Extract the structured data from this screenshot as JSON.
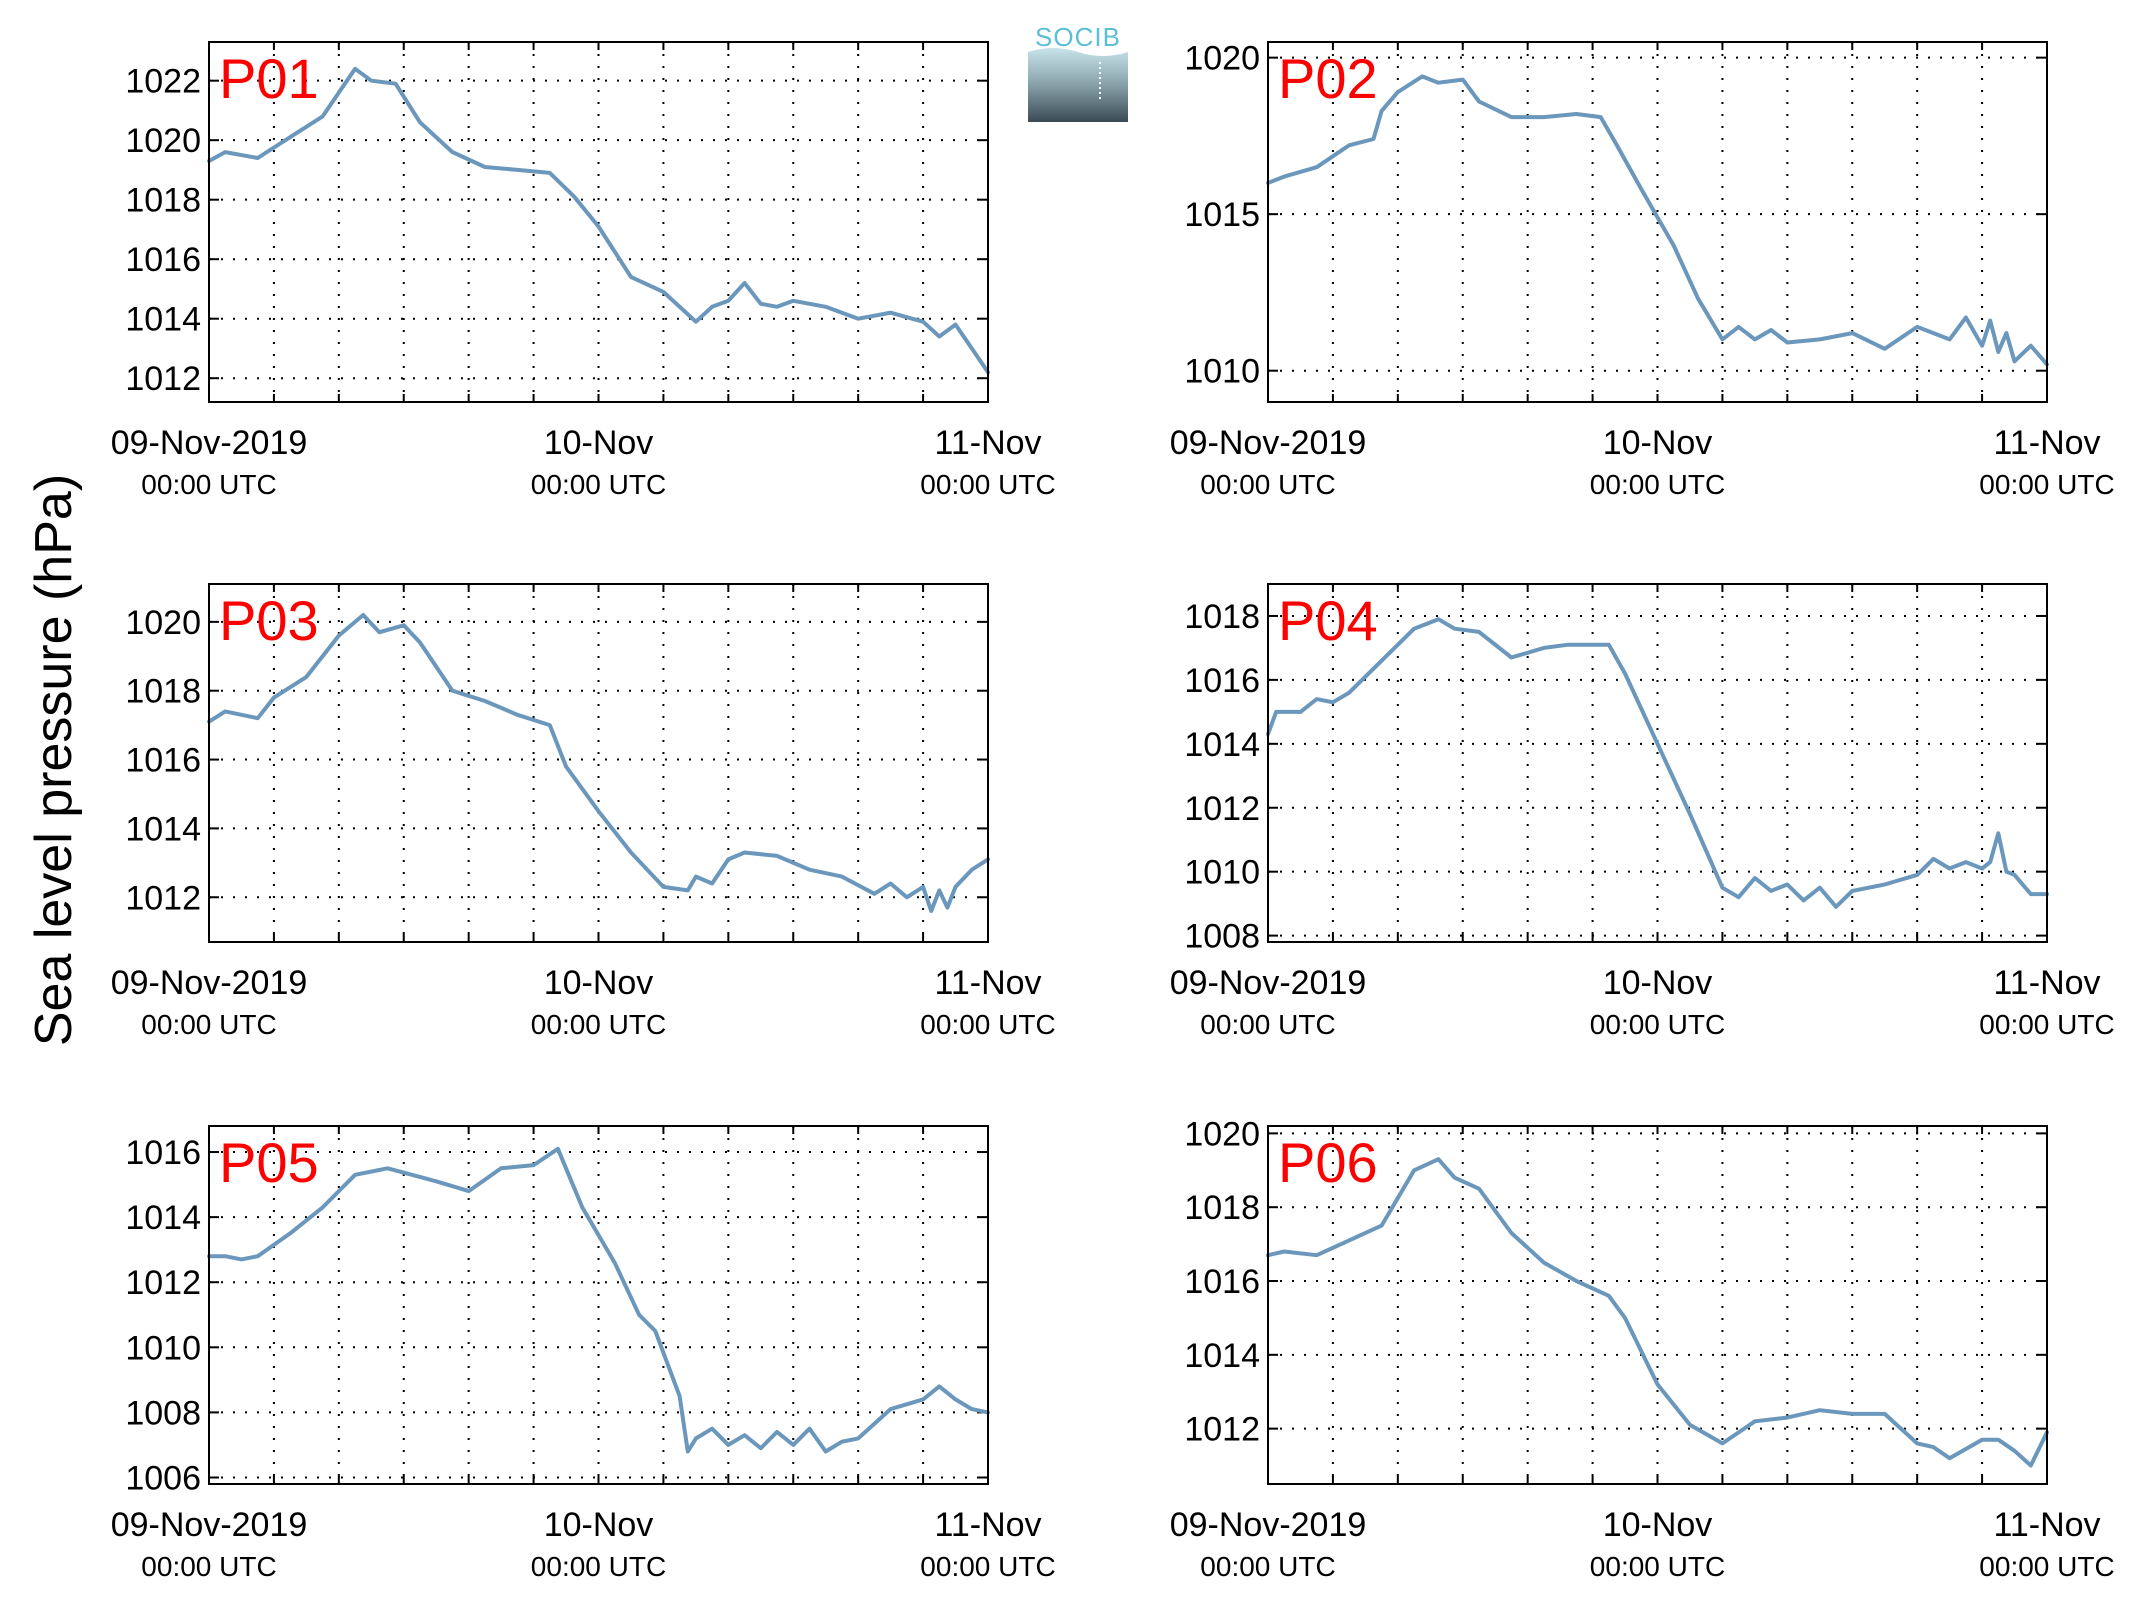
{
  "ylabel": "Sea level pressure (hPa)",
  "logo": {
    "text": "SOCIB"
  },
  "colors": {
    "line": "#6a97bb",
    "panel_label": "#ff0000",
    "grid": "#000000"
  },
  "chart_data": [
    {
      "type": "line",
      "label": "P01",
      "ylim": [
        1011.2,
        1023.3
      ],
      "yticks": [
        1012,
        1014,
        1016,
        1018,
        1020,
        1022
      ],
      "grid": true,
      "xlim": [
        0,
        48
      ],
      "xticks": [
        {
          "x": 0,
          "date": "09-Nov-2019",
          "time": "00:00 UTC"
        },
        {
          "x": 24,
          "date": "10-Nov",
          "time": "00:00 UTC"
        },
        {
          "x": 48,
          "date": "11-Nov",
          "time": "00:00 UTC"
        }
      ],
      "series": [
        {
          "x": [
            0,
            1,
            3,
            5,
            7,
            9,
            10,
            11.5,
            13,
            15,
            17,
            19,
            21,
            22.5,
            24,
            26,
            28,
            30,
            31,
            32,
            33,
            34,
            35,
            36,
            38,
            40,
            42,
            44,
            45,
            46,
            47,
            48
          ],
          "y": [
            1019.3,
            1019.6,
            1019.4,
            1020.1,
            1020.8,
            1022.4,
            1022.0,
            1021.9,
            1020.6,
            1019.6,
            1019.1,
            1019.0,
            1018.9,
            1018.1,
            1017.1,
            1015.4,
            1014.9,
            1013.9,
            1014.4,
            1014.6,
            1015.2,
            1014.5,
            1014.4,
            1014.6,
            1014.4,
            1014.0,
            1014.2,
            1013.9,
            1013.4,
            1013.8,
            1013.0,
            1012.2
          ]
        }
      ]
    },
    {
      "type": "line",
      "label": "P02",
      "ylim": [
        1009.0,
        1020.5
      ],
      "yticks": [
        1010,
        1015,
        1020
      ],
      "grid": true,
      "xlim": [
        0,
        48
      ],
      "xticks": [
        {
          "x": 0,
          "date": "09-Nov-2019",
          "time": "00:00 UTC"
        },
        {
          "x": 24,
          "date": "10-Nov",
          "time": "00:00 UTC"
        },
        {
          "x": 48,
          "date": "11-Nov",
          "time": "00:00 UTC"
        }
      ],
      "series": [
        {
          "x": [
            0,
            1,
            3,
            5,
            6.5,
            7,
            8,
            9.5,
            10.5,
            12,
            13,
            15,
            17,
            19,
            20.5,
            21.5,
            23,
            25,
            26.5,
            28,
            29,
            30,
            31,
            32,
            34,
            36,
            38,
            40,
            42,
            43,
            44,
            44.5,
            45,
            45.5,
            46,
            47,
            48
          ],
          "y": [
            1016.0,
            1016.2,
            1016.5,
            1017.2,
            1017.4,
            1018.3,
            1018.9,
            1019.4,
            1019.2,
            1019.3,
            1018.6,
            1018.1,
            1018.1,
            1018.2,
            1018.1,
            1017.2,
            1015.8,
            1014.0,
            1012.3,
            1011.0,
            1011.4,
            1011.0,
            1011.3,
            1010.9,
            1011.0,
            1011.2,
            1010.7,
            1011.4,
            1011.0,
            1011.7,
            1010.8,
            1011.6,
            1010.6,
            1011.2,
            1010.3,
            1010.8,
            1010.2
          ]
        }
      ]
    },
    {
      "type": "line",
      "label": "P03",
      "ylim": [
        1010.7,
        1021.1
      ],
      "yticks": [
        1012,
        1014,
        1016,
        1018,
        1020
      ],
      "grid": true,
      "xlim": [
        0,
        48
      ],
      "xticks": [
        {
          "x": 0,
          "date": "09-Nov-2019",
          "time": "00:00 UTC"
        },
        {
          "x": 24,
          "date": "10-Nov",
          "time": "00:00 UTC"
        },
        {
          "x": 48,
          "date": "11-Nov",
          "time": "00:00 UTC"
        }
      ],
      "series": [
        {
          "x": [
            0,
            1,
            3,
            4,
            6,
            8,
            9.5,
            10.5,
            12,
            13,
            15,
            17,
            19,
            21,
            22,
            24,
            26,
            28,
            29.5,
            30,
            31,
            32,
            33,
            35,
            37,
            39,
            41,
            42,
            43,
            44,
            44.5,
            45,
            45.5,
            46,
            47,
            48
          ],
          "y": [
            1017.1,
            1017.4,
            1017.2,
            1017.8,
            1018.4,
            1019.6,
            1020.2,
            1019.7,
            1019.9,
            1019.4,
            1018.0,
            1017.7,
            1017.3,
            1017.0,
            1015.8,
            1014.5,
            1013.3,
            1012.3,
            1012.2,
            1012.6,
            1012.4,
            1013.1,
            1013.3,
            1013.2,
            1012.8,
            1012.6,
            1012.1,
            1012.4,
            1012.0,
            1012.3,
            1011.6,
            1012.2,
            1011.7,
            1012.3,
            1012.8,
            1013.1
          ]
        }
      ]
    },
    {
      "type": "line",
      "label": "P04",
      "ylim": [
        1007.8,
        1019.0
      ],
      "yticks": [
        1008,
        1010,
        1012,
        1014,
        1016,
        1018
      ],
      "grid": true,
      "xlim": [
        0,
        48
      ],
      "xticks": [
        {
          "x": 0,
          "date": "09-Nov-2019",
          "time": "00:00 UTC"
        },
        {
          "x": 24,
          "date": "10-Nov",
          "time": "00:00 UTC"
        },
        {
          "x": 48,
          "date": "11-Nov",
          "time": "00:00 UTC"
        }
      ],
      "series": [
        {
          "x": [
            0,
            0.5,
            2,
            3,
            4,
            5,
            7,
            9,
            10.5,
            11.5,
            13,
            15,
            17,
            18.5,
            21,
            22,
            24,
            26,
            28,
            29,
            30,
            31,
            32,
            33,
            34,
            35,
            36,
            38,
            40,
            41,
            42,
            43,
            44,
            44.5,
            45,
            45.5,
            46,
            47,
            48
          ],
          "y": [
            1014.3,
            1015.0,
            1015.0,
            1015.4,
            1015.3,
            1015.6,
            1016.6,
            1017.6,
            1017.9,
            1017.6,
            1017.5,
            1016.7,
            1017.0,
            1017.1,
            1017.1,
            1016.2,
            1014.0,
            1011.8,
            1009.5,
            1009.2,
            1009.8,
            1009.4,
            1009.6,
            1009.1,
            1009.5,
            1008.9,
            1009.4,
            1009.6,
            1009.9,
            1010.4,
            1010.1,
            1010.3,
            1010.1,
            1010.3,
            1011.2,
            1010.0,
            1009.9,
            1009.3,
            1009.3
          ]
        }
      ]
    },
    {
      "type": "line",
      "label": "P05",
      "ylim": [
        1005.8,
        1016.8
      ],
      "yticks": [
        1006,
        1008,
        1010,
        1012,
        1014,
        1016
      ],
      "grid": true,
      "xlim": [
        0,
        48
      ],
      "xticks": [
        {
          "x": 0,
          "date": "09-Nov-2019",
          "time": "00:00 UTC"
        },
        {
          "x": 24,
          "date": "10-Nov",
          "time": "00:00 UTC"
        },
        {
          "x": 48,
          "date": "11-Nov",
          "time": "00:00 UTC"
        }
      ],
      "series": [
        {
          "x": [
            0,
            1,
            2,
            3,
            5,
            7,
            9,
            11,
            12.5,
            14,
            16,
            18,
            20,
            21.5,
            22,
            23,
            25,
            26.5,
            27.5,
            29,
            29.5,
            30,
            31,
            32,
            33,
            34,
            35,
            36,
            37,
            38,
            39,
            40,
            42,
            44,
            45,
            46,
            47,
            48
          ],
          "y": [
            1012.8,
            1012.8,
            1012.7,
            1012.8,
            1013.5,
            1014.3,
            1015.3,
            1015.5,
            1015.3,
            1015.1,
            1014.8,
            1015.5,
            1015.6,
            1016.1,
            1015.5,
            1014.3,
            1012.6,
            1011.0,
            1010.5,
            1008.5,
            1006.8,
            1007.2,
            1007.5,
            1007.0,
            1007.3,
            1006.9,
            1007.4,
            1007.0,
            1007.5,
            1006.8,
            1007.1,
            1007.2,
            1008.1,
            1008.4,
            1008.8,
            1008.4,
            1008.1,
            1008.0
          ]
        }
      ]
    },
    {
      "type": "line",
      "label": "P06",
      "ylim": [
        1010.5,
        1020.2
      ],
      "yticks": [
        1012,
        1014,
        1016,
        1018,
        1020
      ],
      "grid": true,
      "xlim": [
        0,
        48
      ],
      "xticks": [
        {
          "x": 0,
          "date": "09-Nov-2019",
          "time": "00:00 UTC"
        },
        {
          "x": 24,
          "date": "10-Nov",
          "time": "00:00 UTC"
        },
        {
          "x": 48,
          "date": "11-Nov",
          "time": "00:00 UTC"
        }
      ],
      "series": [
        {
          "x": [
            0,
            1,
            3,
            5,
            7,
            9,
            10.5,
            11.5,
            13,
            15,
            17,
            19,
            21,
            22,
            24,
            26,
            28,
            30,
            32,
            34,
            36,
            38,
            39,
            40,
            41,
            42,
            44,
            45,
            46,
            47,
            48
          ],
          "y": [
            1016.7,
            1016.8,
            1016.7,
            1017.1,
            1017.5,
            1019.0,
            1019.3,
            1018.8,
            1018.5,
            1017.3,
            1016.5,
            1016.0,
            1015.6,
            1015.0,
            1013.2,
            1012.1,
            1011.6,
            1012.2,
            1012.3,
            1012.5,
            1012.4,
            1012.4,
            1012.0,
            1011.6,
            1011.5,
            1011.2,
            1011.7,
            1011.7,
            1011.4,
            1011.0,
            1011.9
          ]
        }
      ]
    }
  ]
}
